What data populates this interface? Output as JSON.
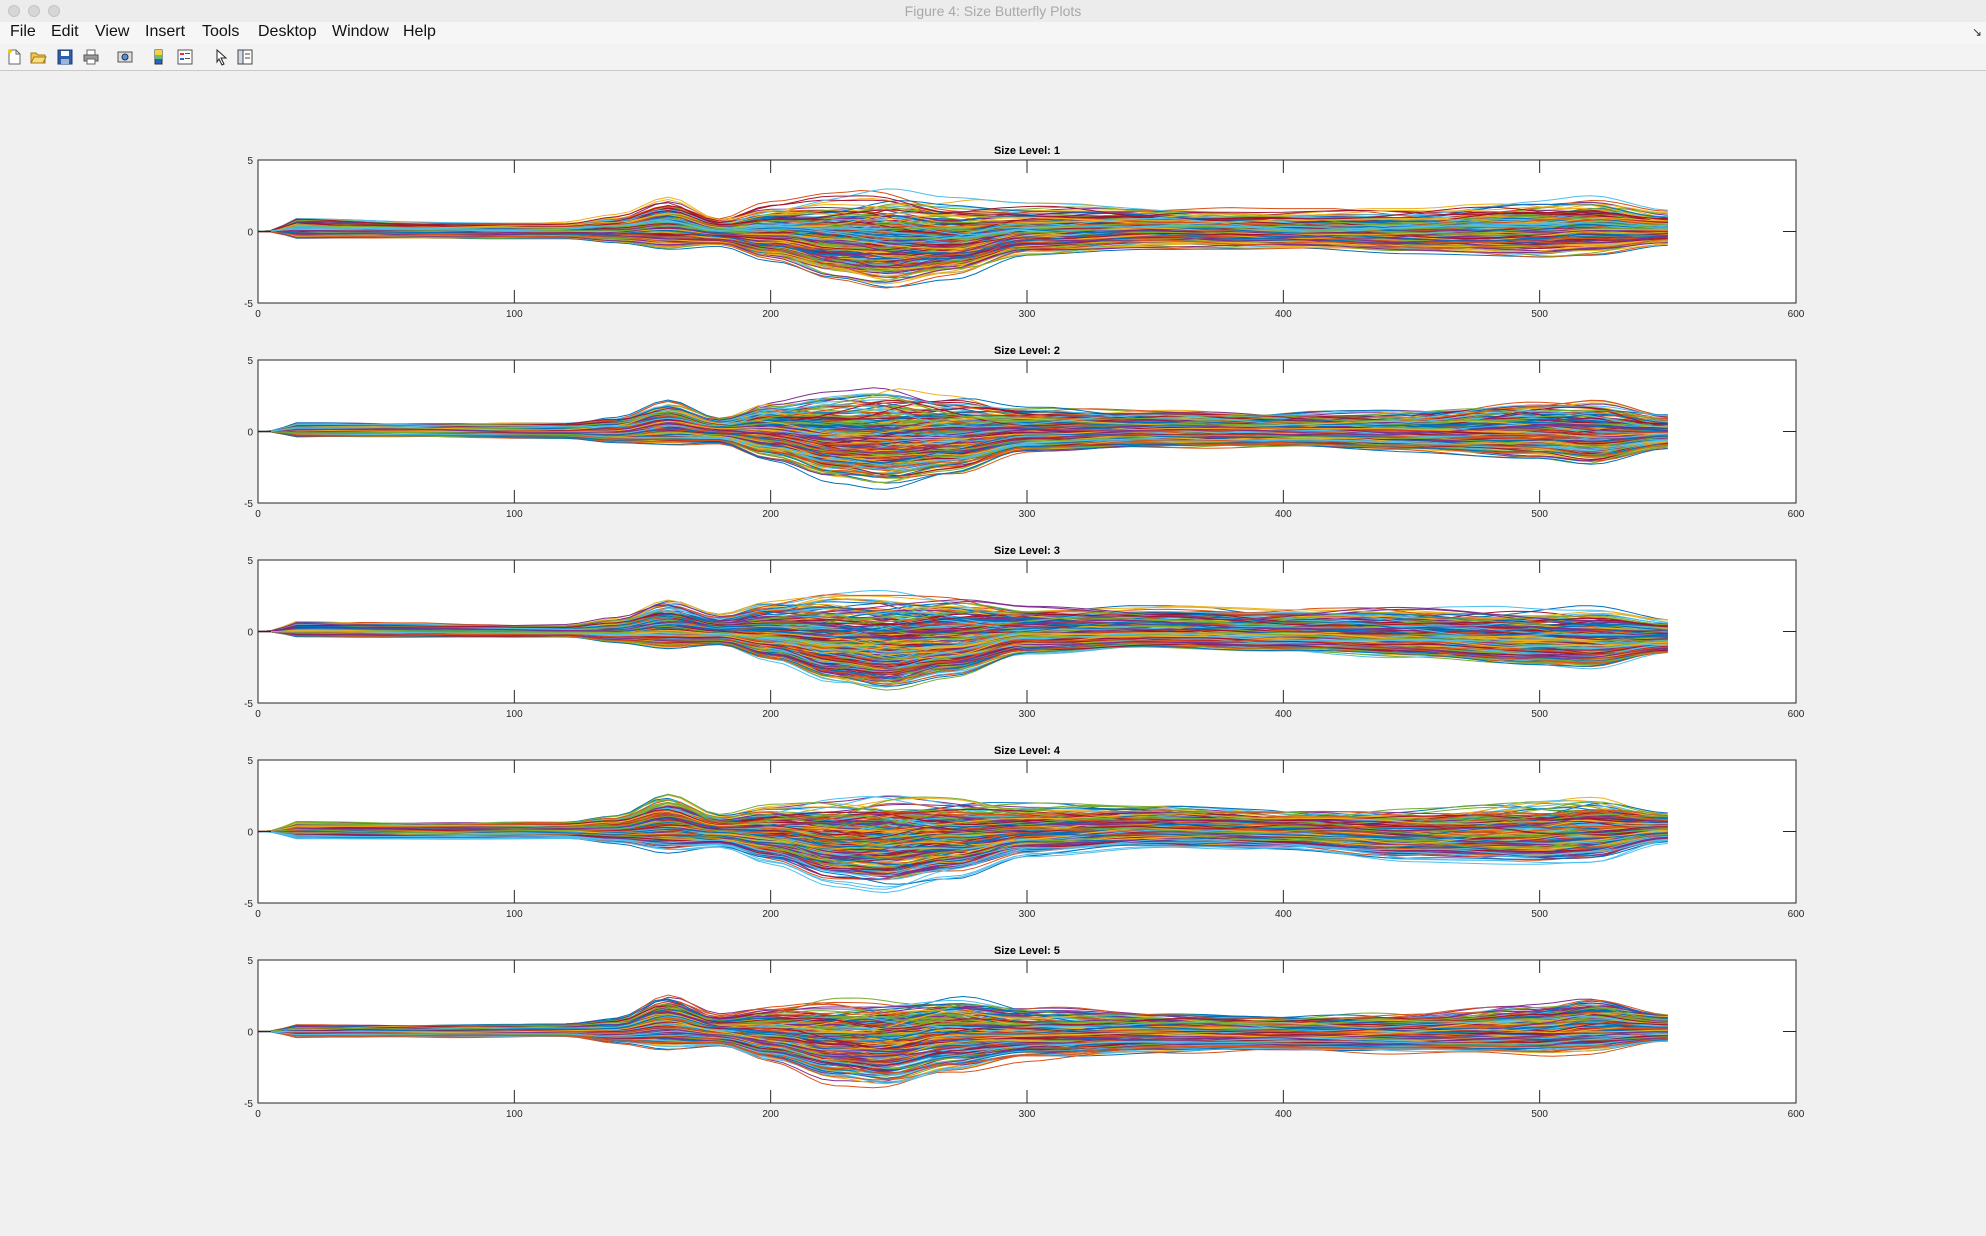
{
  "window": {
    "title": "Figure 4: Size Butterfly Plots"
  },
  "menu": {
    "items": [
      "File",
      "Edit",
      "View",
      "Insert",
      "Tools",
      "Desktop",
      "Window",
      "Help"
    ]
  },
  "toolbar": {
    "icons": [
      "new-figure-icon",
      "open-file-icon",
      "save-icon",
      "print-icon",
      "print-preview-icon",
      "colorbar-icon",
      "legend-icon",
      "pointer-icon",
      "property-editor-icon"
    ]
  },
  "chart_data": [
    {
      "type": "line",
      "title": "Size Level: 1",
      "xlim": [
        0,
        600
      ],
      "ylim": [
        -5,
        5
      ],
      "xticks": [
        0,
        100,
        200,
        300,
        400,
        500,
        600
      ],
      "yticks": [
        -5,
        0,
        5
      ],
      "series_count": 300,
      "x_range": [
        0,
        550
      ],
      "envelope": {
        "x": [
          0,
          15,
          60,
          120,
          140,
          160,
          180,
          200,
          225,
          245,
          270,
          300,
          350,
          400,
          450,
          500,
          520,
          550
        ],
        "upper": [
          0,
          0.9,
          0.7,
          0.7,
          1.2,
          2.4,
          1.0,
          2.1,
          2.7,
          3.1,
          2.4,
          2.0,
          1.8,
          1.6,
          1.6,
          2.3,
          2.5,
          1.5
        ],
        "lower": [
          0,
          -0.6,
          -0.6,
          -0.6,
          -1.0,
          -1.6,
          -1.2,
          -2.5,
          -4.0,
          -4.7,
          -3.8,
          -2.0,
          -1.5,
          -1.5,
          -1.8,
          -2.2,
          -2.0,
          -1.2
        ]
      }
    },
    {
      "type": "line",
      "title": "Size Level: 2",
      "xlim": [
        0,
        600
      ],
      "ylim": [
        -5,
        5
      ],
      "xticks": [
        0,
        100,
        200,
        300,
        400,
        500,
        600
      ],
      "yticks": [
        -5,
        0,
        5
      ],
      "series_count": 300,
      "x_range": [
        0,
        550
      ],
      "envelope": {
        "x": [
          0,
          15,
          60,
          120,
          140,
          160,
          180,
          200,
          225,
          245,
          270,
          300,
          350,
          400,
          450,
          500,
          520,
          550
        ],
        "upper": [
          0,
          0.6,
          0.6,
          0.6,
          1.0,
          2.2,
          1.0,
          2.2,
          2.8,
          3.1,
          2.5,
          1.7,
          1.6,
          1.4,
          1.5,
          2.2,
          2.3,
          1.2
        ],
        "lower": [
          0,
          -0.5,
          -0.5,
          -0.6,
          -1.0,
          -1.3,
          -1.0,
          -2.4,
          -4.0,
          -4.6,
          -3.6,
          -1.8,
          -1.4,
          -1.4,
          -1.7,
          -2.3,
          -2.8,
          -1.4
        ]
      }
    },
    {
      "type": "line",
      "title": "Size Level: 3",
      "xlim": [
        0,
        600
      ],
      "ylim": [
        -5,
        5
      ],
      "xticks": [
        0,
        100,
        200,
        300,
        400,
        500,
        600
      ],
      "yticks": [
        -5,
        0,
        5
      ],
      "series_count": 300,
      "x_range": [
        0,
        550
      ],
      "envelope": {
        "x": [
          0,
          15,
          60,
          120,
          140,
          160,
          180,
          200,
          225,
          245,
          270,
          300,
          350,
          400,
          450,
          500,
          520,
          550
        ],
        "upper": [
          0,
          0.7,
          0.6,
          0.5,
          1.0,
          2.2,
          1.2,
          2.1,
          2.8,
          2.9,
          2.7,
          1.9,
          1.8,
          1.6,
          1.7,
          1.8,
          1.8,
          0.9
        ],
        "lower": [
          0,
          -0.5,
          -0.5,
          -0.5,
          -1.0,
          -1.6,
          -1.2,
          -2.5,
          -4.2,
          -4.8,
          -3.8,
          -2.0,
          -1.5,
          -1.7,
          -2.2,
          -2.8,
          -3.0,
          -1.8
        ]
      }
    },
    {
      "type": "line",
      "title": "Size Level: 4",
      "xlim": [
        0,
        600
      ],
      "ylim": [
        -5,
        5
      ],
      "xticks": [
        0,
        100,
        200,
        300,
        400,
        500,
        600
      ],
      "yticks": [
        -5,
        0,
        5
      ],
      "series_count": 300,
      "x_range": [
        0,
        550
      ],
      "envelope": {
        "x": [
          0,
          15,
          60,
          120,
          140,
          160,
          180,
          200,
          225,
          245,
          270,
          300,
          350,
          400,
          450,
          500,
          520,
          550
        ],
        "upper": [
          0,
          0.7,
          0.6,
          0.7,
          1.1,
          2.6,
          1.2,
          2.0,
          2.4,
          2.8,
          2.5,
          2.0,
          1.8,
          1.5,
          1.6,
          2.1,
          2.4,
          1.4
        ],
        "lower": [
          0,
          -0.6,
          -0.6,
          -0.6,
          -1.0,
          -1.8,
          -1.3,
          -2.6,
          -4.2,
          -4.7,
          -3.7,
          -2.0,
          -1.4,
          -1.5,
          -2.3,
          -2.6,
          -2.5,
          -1.0
        ]
      }
    },
    {
      "type": "line",
      "title": "Size Level: 5",
      "xlim": [
        0,
        600
      ],
      "ylim": [
        -5,
        5
      ],
      "xticks": [
        0,
        100,
        200,
        300,
        400,
        500,
        600
      ],
      "yticks": [
        -5,
        0,
        5
      ],
      "series_count": 300,
      "x_range": [
        0,
        550
      ],
      "envelope": {
        "x": [
          0,
          15,
          60,
          120,
          140,
          160,
          180,
          200,
          225,
          245,
          270,
          300,
          350,
          400,
          450,
          500,
          520,
          550
        ],
        "upper": [
          0,
          0.5,
          0.5,
          0.6,
          1.0,
          2.6,
          1.3,
          2.0,
          2.6,
          2.8,
          2.8,
          1.8,
          1.5,
          1.3,
          1.4,
          2.0,
          2.4,
          1.4
        ],
        "lower": [
          0,
          -0.5,
          -0.5,
          -0.5,
          -1.0,
          -1.6,
          -1.3,
          -2.6,
          -4.2,
          -4.7,
          -3.6,
          -2.4,
          -1.8,
          -1.6,
          -1.8,
          -2.0,
          -1.9,
          -1.0
        ]
      }
    }
  ],
  "colors": {
    "line_order": [
      "#0072BD",
      "#D95319",
      "#EDB120",
      "#7E2F8E",
      "#77AC30",
      "#4DBEEE",
      "#A2142F"
    ],
    "axes_background": "#ffffff",
    "figure_background": "#f0f0f0"
  }
}
